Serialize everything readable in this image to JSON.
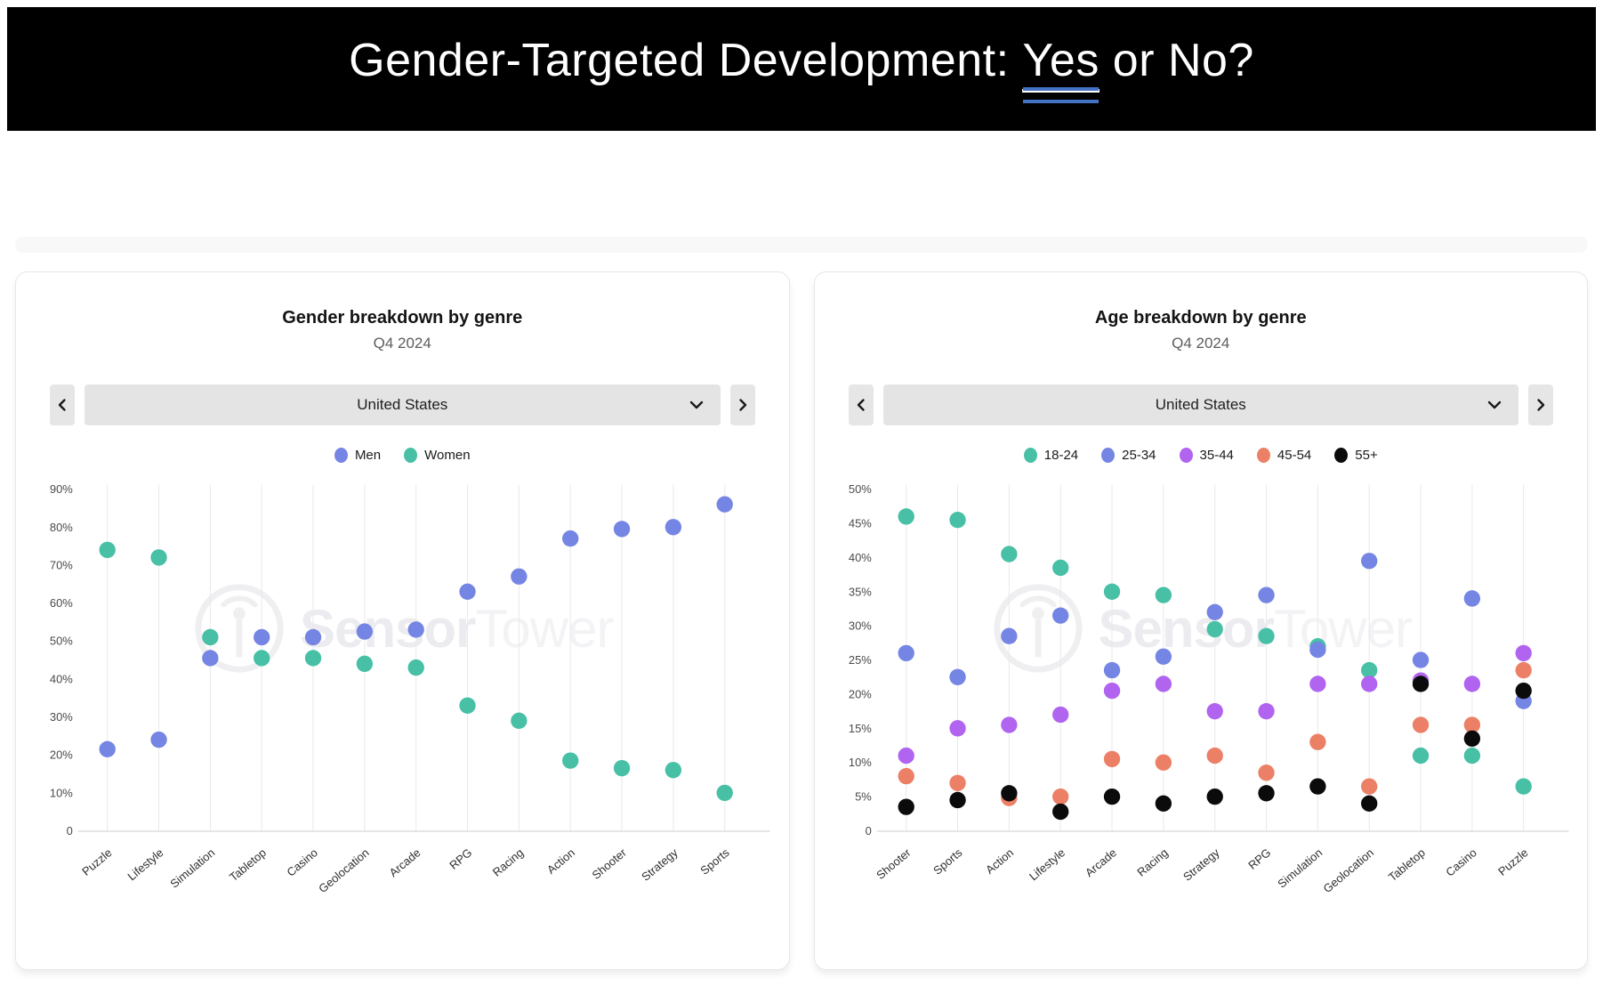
{
  "header": {
    "title_before": "Gender-Targeted Development: ",
    "title_underlined": "Yes",
    "title_after": " or No?",
    "underline_color": "#4472c4"
  },
  "cards": [
    {
      "country": "United States"
    },
    {
      "country": "United States"
    }
  ],
  "watermark": {
    "bold": "Sensor",
    "light": "Tower"
  },
  "chart_data": [
    {
      "type": "scatter",
      "title": "Gender breakdown by genre",
      "subtitle": "Q4 2024",
      "categories": [
        "Puzzle",
        "Lifestyle",
        "Simulation",
        "Tabletop",
        "Casino",
        "Geolocation",
        "Arcade",
        "RPG",
        "Racing",
        "Action",
        "Shooter",
        "Strategy",
        "Sports"
      ],
      "series": [
        {
          "name": "Men",
          "color": "#7585e4",
          "values": [
            21.5,
            24,
            45.5,
            51,
            51,
            52.5,
            53,
            63,
            67,
            77,
            79.5,
            80,
            86
          ]
        },
        {
          "name": "Women",
          "color": "#47c0a5",
          "values": [
            74,
            72,
            51,
            45.5,
            45.5,
            44,
            43,
            33,
            29,
            18.5,
            16.5,
            16,
            10
          ]
        }
      ],
      "ylim": [
        0,
        90
      ],
      "ytick_step": 10,
      "ytick_suffix": "%",
      "grid": "vertical-only",
      "legend_position": "top",
      "xlabel": "",
      "ylabel": ""
    },
    {
      "type": "scatter",
      "title": "Age breakdown by genre",
      "subtitle": "Q4 2024",
      "categories": [
        "Shooter",
        "Sports",
        "Action",
        "Lifestyle",
        "Arcade",
        "Racing",
        "Strategy",
        "RPG",
        "Simulation",
        "Geolocation",
        "Tabletop",
        "Casino",
        "Puzzle"
      ],
      "series": [
        {
          "name": "18-24",
          "color": "#47c0a5",
          "values": [
            46,
            45.5,
            40.5,
            38.5,
            35,
            34.5,
            29.5,
            28.5,
            27,
            23.5,
            11,
            11,
            6.5
          ]
        },
        {
          "name": "25-34",
          "color": "#7585e4",
          "values": [
            26,
            22.5,
            28.5,
            31.5,
            23.5,
            25.5,
            32,
            34.5,
            26.5,
            39.5,
            25,
            34,
            19
          ]
        },
        {
          "name": "35-44",
          "color": "#b164f0",
          "values": [
            11,
            15,
            15.5,
            17,
            20.5,
            21.5,
            17.5,
            17.5,
            21.5,
            21.5,
            22,
            21.5,
            26
          ]
        },
        {
          "name": "45-54",
          "color": "#ec8066",
          "values": [
            8,
            7,
            4.8,
            5,
            10.5,
            10,
            11,
            8.5,
            13,
            6.5,
            15.5,
            15.5,
            23.5
          ]
        },
        {
          "name": "55+",
          "color": "#0b0b0b",
          "values": [
            3.5,
            4.5,
            5.5,
            2.8,
            5,
            4,
            5,
            5.5,
            6.5,
            4,
            21.5,
            13.5,
            20.5
          ]
        }
      ],
      "ylim": [
        0,
        50
      ],
      "ytick_step": 5,
      "ytick_suffix": "%",
      "grid": "vertical-only",
      "legend_position": "top",
      "xlabel": "",
      "ylabel": ""
    }
  ]
}
